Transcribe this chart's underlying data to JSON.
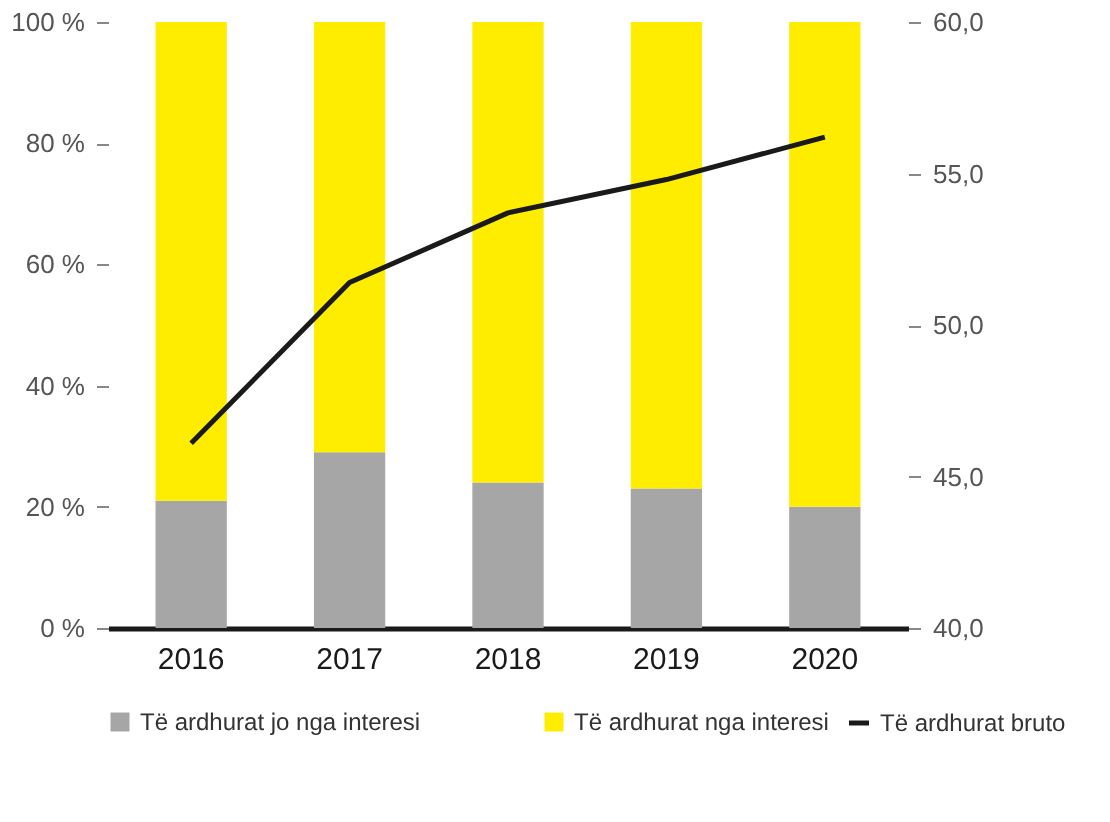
{
  "chart_data": {
    "type": "bar",
    "stacked": true,
    "categories": [
      "2016",
      "2017",
      "2018",
      "2019",
      "2020"
    ],
    "series": [
      {
        "name": "Të ardhurat jo nga interesi",
        "color": "#a6a6a6",
        "values": [
          21,
          29,
          24,
          23,
          20
        ]
      },
      {
        "name": "Të ardhurat nga interesi",
        "color": "#ffed00",
        "values": [
          79,
          71,
          76,
          77,
          80
        ]
      },
      {
        "name": "Të ardhurat bruto",
        "type": "line",
        "axis": "y2",
        "color": "#1a1a1a",
        "values": [
          46.1,
          51.4,
          53.7,
          54.8,
          56.2
        ]
      }
    ],
    "ylim": [
      0,
      100
    ],
    "yticks": [
      {
        "value": 0,
        "label": "0 %"
      },
      {
        "value": 20,
        "label": "20 %"
      },
      {
        "value": 40,
        "label": "40 %"
      },
      {
        "value": 60,
        "label": "60 %"
      },
      {
        "value": 80,
        "label": "80 %"
      },
      {
        "value": 100,
        "label": "100 %"
      }
    ],
    "y2lim": [
      40,
      60
    ],
    "y2ticks": [
      {
        "value": 40,
        "label": "40,0"
      },
      {
        "value": 45,
        "label": "45,0"
      },
      {
        "value": 50,
        "label": "50,0"
      },
      {
        "value": 55,
        "label": "55,0"
      },
      {
        "value": 60,
        "label": "60,0"
      }
    ],
    "grid": false,
    "legend": "bottom",
    "marker": "none",
    "line_style": "solid"
  }
}
